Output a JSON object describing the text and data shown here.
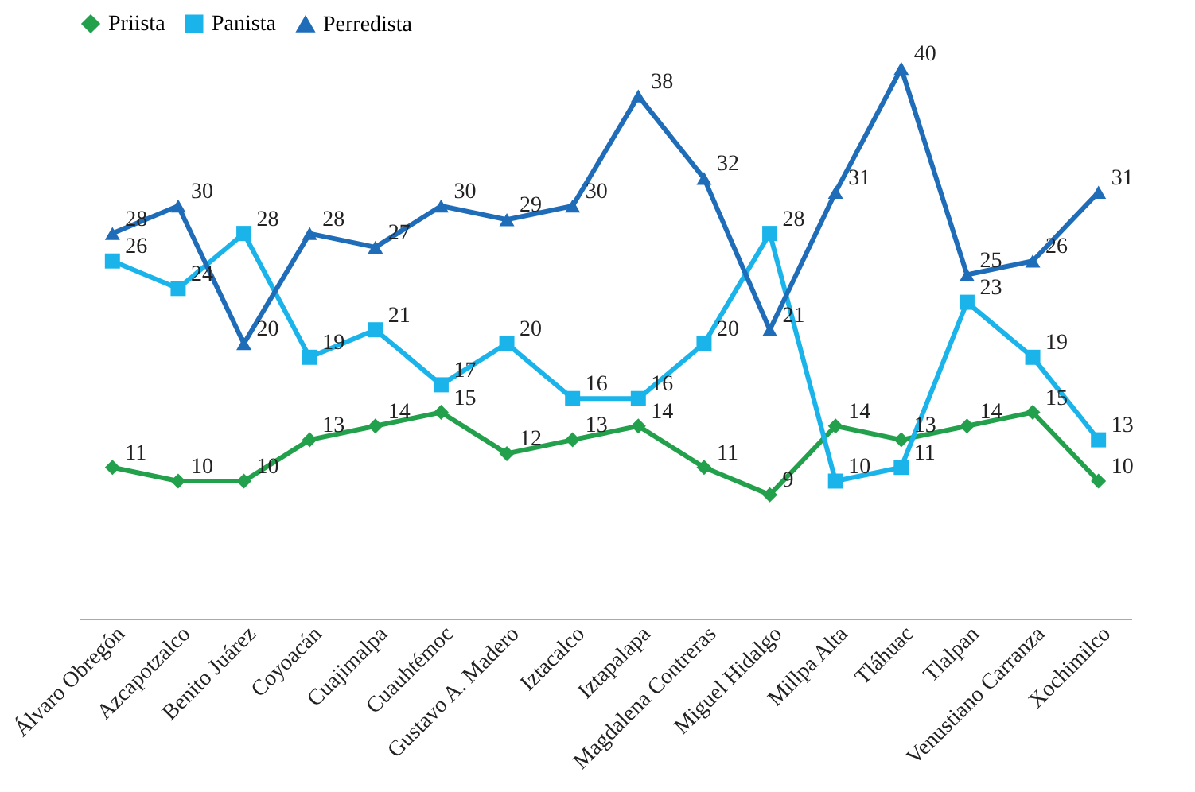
{
  "chart_data": {
    "type": "line",
    "categories": [
      "Álvaro Obregón",
      "Azcapotzalco",
      "Benito Juárez",
      "Coyoacán",
      "Cuajimalpa",
      "Cuauhtémoc",
      "Gustavo A. Madero",
      "Iztacalco",
      "Iztapalapa",
      "Magdalena Contreras",
      "Miguel Hidalgo",
      "Millpa Alta",
      "Tláhuac",
      "Tlalpan",
      "Venustiano Carranza",
      "Xochimilco"
    ],
    "series": [
      {
        "name": "Priista",
        "color": "#22a04b",
        "marker": "diamond",
        "values": [
          11,
          10,
          10,
          13,
          14,
          15,
          12,
          13,
          14,
          11,
          9,
          14,
          13,
          14,
          15,
          10
        ]
      },
      {
        "name": "Panista",
        "color": "#1ab4ea",
        "marker": "square",
        "values": [
          26,
          24,
          28,
          19,
          21,
          17,
          20,
          16,
          16,
          20,
          28,
          10,
          11,
          23,
          19,
          13
        ]
      },
      {
        "name": "Perredista",
        "color": "#1f6db8",
        "marker": "triangle",
        "values": [
          28,
          30,
          20,
          28,
          27,
          30,
          29,
          30,
          38,
          32,
          21,
          31,
          40,
          25,
          26,
          31
        ]
      }
    ],
    "data_labels": true,
    "tick_labels": "x",
    "legend": "top",
    "grid": false
  }
}
